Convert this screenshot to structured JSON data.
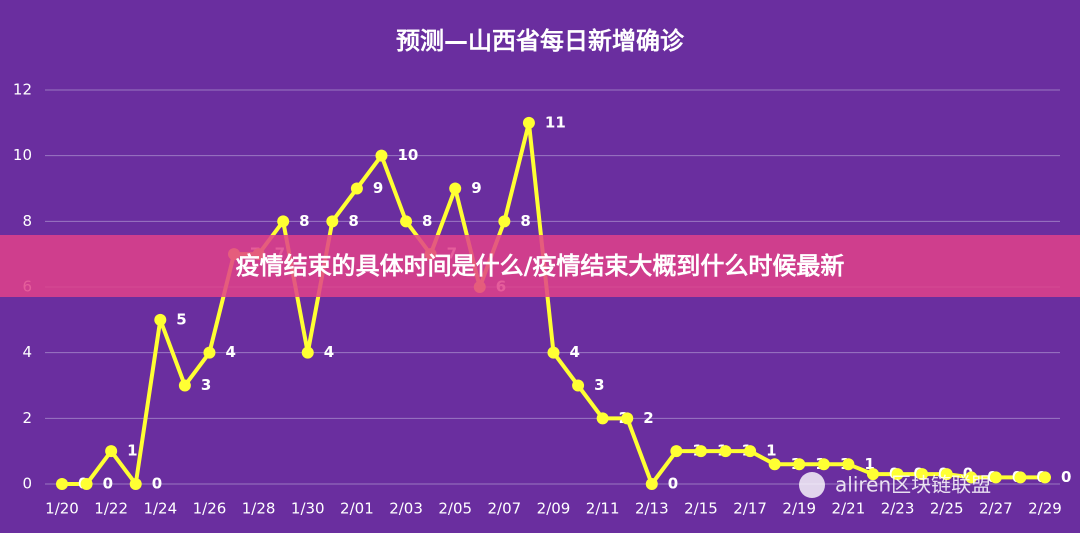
{
  "chart_data": {
    "type": "line",
    "title": "预测—山西省每日新增确诊",
    "categories": [
      "1/20",
      null,
      "1/22",
      null,
      "1/24",
      null,
      "1/26",
      null,
      "1/28",
      null,
      "1/30",
      null,
      "2/01",
      null,
      "2/03",
      null,
      "2/05",
      null,
      "2/07",
      null,
      "2/09",
      null,
      "2/11",
      null,
      "2/13",
      null,
      "2/15",
      null,
      "2/17",
      null,
      "2/19",
      null,
      "2/21",
      null,
      "2/23",
      null,
      "2/25",
      null,
      "2/27",
      null,
      "2/29"
    ],
    "values": [
      0,
      0,
      1,
      0,
      5,
      3,
      4,
      7,
      7,
      8,
      4,
      8,
      9,
      10,
      8,
      7,
      9,
      6,
      8,
      11,
      4,
      3,
      2,
      2,
      0,
      1,
      1,
      1,
      1,
      0.6,
      0.6,
      0.6,
      0.6,
      0.3,
      0.3,
      0.3,
      0.3,
      0.2,
      0.2,
      0.2,
      0.2
    ],
    "value_labels": [
      "0",
      "0",
      "1",
      "0",
      "5",
      "3",
      "4",
      "7",
      "7",
      "8",
      "4",
      "8",
      "9",
      "10",
      "8",
      "7",
      "9",
      "6",
      "8",
      "11",
      "4",
      "3",
      "2",
      "2",
      "0",
      "1",
      "1",
      "1",
      "1",
      "1",
      "1",
      "1",
      "1",
      "0",
      "0",
      "0",
      "0",
      "0",
      "0",
      "0",
      "0"
    ],
    "color": "#ffff33",
    "ylim": [
      0,
      12
    ],
    "yticks": [
      0,
      2,
      4,
      6,
      8,
      10,
      12
    ],
    "grid": true
  },
  "banner": "疫情结束的具体时间是什么/疫情结束大概到什么时候最新",
  "watermark": "aliren区块链联盟"
}
